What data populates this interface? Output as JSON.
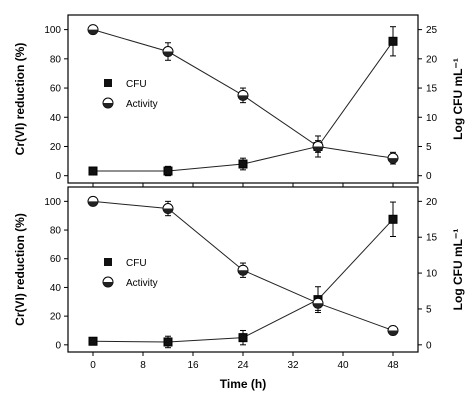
{
  "chart_data": [
    {
      "type": "line",
      "panel": "top",
      "xlabel": "",
      "ylabel": "Cr(VI) reduction (%)",
      "y2label": "Log CFU mL⁻¹",
      "xlim": [
        -4,
        52
      ],
      "ylim": [
        -5,
        110
      ],
      "y2lim": [
        -1.25,
        27.5
      ],
      "xticks": [
        0,
        8,
        16,
        24,
        32,
        40,
        48
      ],
      "yticks": [
        0,
        20,
        40,
        60,
        80,
        100
      ],
      "y2ticks": [
        0,
        5,
        10,
        15,
        20,
        25
      ],
      "legend_position": "center-left",
      "series": [
        {
          "name": "CFU",
          "marker": "square",
          "axis": "right",
          "x": [
            0,
            12,
            24,
            36,
            48
          ],
          "y": [
            0.8,
            0.8,
            2.0,
            5.0,
            23.0
          ],
          "err": [
            0.2,
            0.8,
            1.0,
            1.8,
            2.5
          ]
        },
        {
          "name": "Activity",
          "marker": "half-filled-circle",
          "axis": "left",
          "x": [
            0,
            12,
            24,
            36,
            48
          ],
          "y": [
            100,
            85,
            55,
            20,
            12
          ],
          "err": [
            1,
            6,
            5,
            4,
            4
          ]
        }
      ]
    },
    {
      "type": "line",
      "panel": "bottom",
      "xlabel": "Time (h)",
      "ylabel": "Cr(VI) reduction (%)",
      "y2label": "Log CFU mL⁻¹",
      "xlim": [
        -4,
        52
      ],
      "ylim": [
        -5,
        110
      ],
      "y2lim": [
        -1,
        22
      ],
      "xticks": [
        0,
        8,
        16,
        24,
        32,
        40,
        48
      ],
      "yticks": [
        0,
        20,
        40,
        60,
        80,
        100
      ],
      "y2ticks": [
        0,
        5,
        10,
        15,
        20
      ],
      "legend_position": "center-left",
      "series": [
        {
          "name": "CFU",
          "marker": "square",
          "axis": "right",
          "x": [
            0,
            12,
            24,
            36,
            48
          ],
          "y": [
            0.5,
            0.4,
            1.0,
            6.3,
            17.5
          ],
          "err": [
            0.2,
            0.8,
            1.0,
            1.8,
            2.4
          ]
        },
        {
          "name": "Activity",
          "marker": "half-filled-circle",
          "axis": "left",
          "x": [
            0,
            12,
            24,
            36,
            48
          ],
          "y": [
            100,
            95,
            52,
            29,
            10
          ],
          "err": [
            1,
            5,
            5,
            5,
            3
          ]
        }
      ]
    }
  ]
}
